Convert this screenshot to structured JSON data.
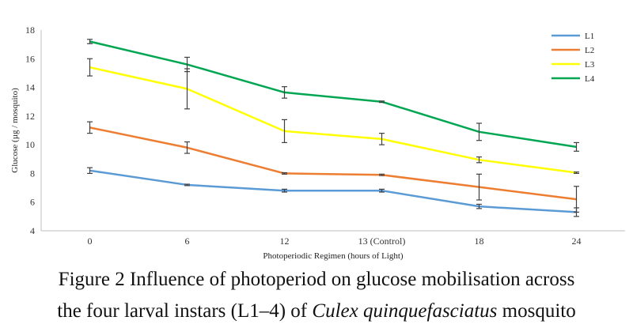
{
  "chart_data": {
    "type": "line",
    "title": "",
    "xlabel": "Photoperiodic Regimen (hours of Light)",
    "ylabel": "Glucose (µg / mosquito)",
    "categories": [
      "0",
      "6",
      "12",
      "13 (Control)",
      "18",
      "24"
    ],
    "ylim": [
      4,
      18
    ],
    "yticks": [
      4,
      6,
      8,
      10,
      12,
      14,
      16,
      18
    ],
    "grid": false,
    "legend_position": "top-right",
    "series": [
      {
        "name": "L1",
        "color": "#5b9bd5",
        "values": [
          8.2,
          7.2,
          6.8,
          6.8,
          5.7,
          5.3
        ],
        "errors": [
          0.2,
          0.05,
          0.1,
          0.1,
          0.15,
          0.3
        ]
      },
      {
        "name": "L2",
        "color": "#ed7d31",
        "values": [
          11.2,
          9.8,
          8.0,
          7.9,
          7.05,
          6.2
        ],
        "errors": [
          0.4,
          0.4,
          0.05,
          0.05,
          0.9,
          0.9
        ]
      },
      {
        "name": "L3",
        "color": "#ffff00",
        "values": [
          15.4,
          13.9,
          10.95,
          10.4,
          8.95,
          8.05
        ],
        "errors": [
          0.6,
          1.4,
          0.8,
          0.4,
          0.2,
          0.05
        ]
      },
      {
        "name": "L4",
        "color": "#00a651",
        "values": [
          17.2,
          15.6,
          13.65,
          13.0,
          10.9,
          9.85
        ],
        "errors": [
          0.15,
          0.5,
          0.4,
          0.05,
          0.6,
          0.3
        ]
      }
    ]
  },
  "caption": {
    "line1": "Figure 2 Influence of photoperiod on glucose mobilisation across",
    "line2_prefix": "the four larval instars (L1–4) of ",
    "line2_species": "Culex quinquefasciatus",
    "line2_suffix": " mosquito"
  }
}
